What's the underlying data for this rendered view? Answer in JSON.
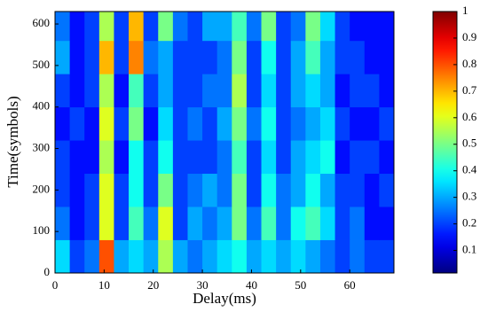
{
  "chart_data": {
    "type": "heatmap",
    "xlabel": "Delay(ms)",
    "ylabel": "Time(symbols)",
    "colormap": "jet",
    "xbins": [
      0,
      3,
      6,
      9,
      12,
      15,
      18,
      21,
      24,
      27,
      30,
      33,
      36,
      39,
      42,
      45,
      48,
      51,
      54,
      57,
      60,
      63,
      66,
      69
    ],
    "ybins": [
      0,
      80,
      160,
      240,
      320,
      400,
      480,
      560,
      630
    ],
    "values": [
      [
        0.35,
        0.2,
        0.25,
        0.8,
        0.3,
        0.35,
        0.3,
        0.55,
        0.3,
        0.25,
        0.3,
        0.35,
        0.4,
        0.3,
        0.35,
        0.3,
        0.35,
        0.3,
        0.25,
        0.2,
        0.25,
        0.2,
        0.2
      ],
      [
        0.25,
        0.15,
        0.2,
        0.6,
        0.2,
        0.45,
        0.25,
        0.6,
        0.2,
        0.3,
        0.25,
        0.3,
        0.5,
        0.25,
        0.45,
        0.25,
        0.4,
        0.45,
        0.35,
        0.2,
        0.25,
        0.15,
        0.15
      ],
      [
        0.2,
        0.15,
        0.2,
        0.6,
        0.2,
        0.4,
        0.2,
        0.5,
        0.2,
        0.25,
        0.3,
        0.25,
        0.5,
        0.2,
        0.4,
        0.25,
        0.3,
        0.4,
        0.3,
        0.2,
        0.2,
        0.15,
        0.2
      ],
      [
        0.2,
        0.15,
        0.15,
        0.55,
        0.15,
        0.4,
        0.2,
        0.4,
        0.2,
        0.2,
        0.2,
        0.25,
        0.45,
        0.2,
        0.35,
        0.2,
        0.3,
        0.35,
        0.4,
        0.15,
        0.2,
        0.2,
        0.15
      ],
      [
        0.15,
        0.2,
        0.15,
        0.6,
        0.2,
        0.5,
        0.15,
        0.35,
        0.2,
        0.25,
        0.2,
        0.3,
        0.5,
        0.25,
        0.4,
        0.2,
        0.25,
        0.3,
        0.35,
        0.2,
        0.15,
        0.15,
        0.2
      ],
      [
        0.2,
        0.15,
        0.2,
        0.55,
        0.15,
        0.45,
        0.2,
        0.3,
        0.2,
        0.2,
        0.25,
        0.25,
        0.55,
        0.2,
        0.35,
        0.2,
        0.3,
        0.35,
        0.3,
        0.15,
        0.2,
        0.2,
        0.15
      ],
      [
        0.3,
        0.15,
        0.2,
        0.7,
        0.2,
        0.75,
        0.25,
        0.3,
        0.2,
        0.2,
        0.2,
        0.25,
        0.5,
        0.2,
        0.4,
        0.2,
        0.3,
        0.45,
        0.3,
        0.2,
        0.2,
        0.15,
        0.15
      ],
      [
        0.25,
        0.15,
        0.2,
        0.55,
        0.2,
        0.7,
        0.2,
        0.5,
        0.25,
        0.2,
        0.3,
        0.3,
        0.45,
        0.25,
        0.5,
        0.2,
        0.25,
        0.5,
        0.35,
        0.2,
        0.15,
        0.15,
        0.15
      ]
    ],
    "xlim": [
      0,
      69
    ],
    "xticks": [
      0,
      10,
      20,
      30,
      40,
      50,
      60
    ],
    "ylim": [
      0,
      630
    ],
    "yticks": [
      0,
      100,
      200,
      300,
      400,
      500,
      600
    ],
    "clim": [
      0.015,
      1
    ],
    "cticks": [
      0.1,
      0.2,
      0.3,
      0.4,
      0.5,
      0.6,
      0.7,
      0.8,
      0.9,
      1
    ]
  }
}
